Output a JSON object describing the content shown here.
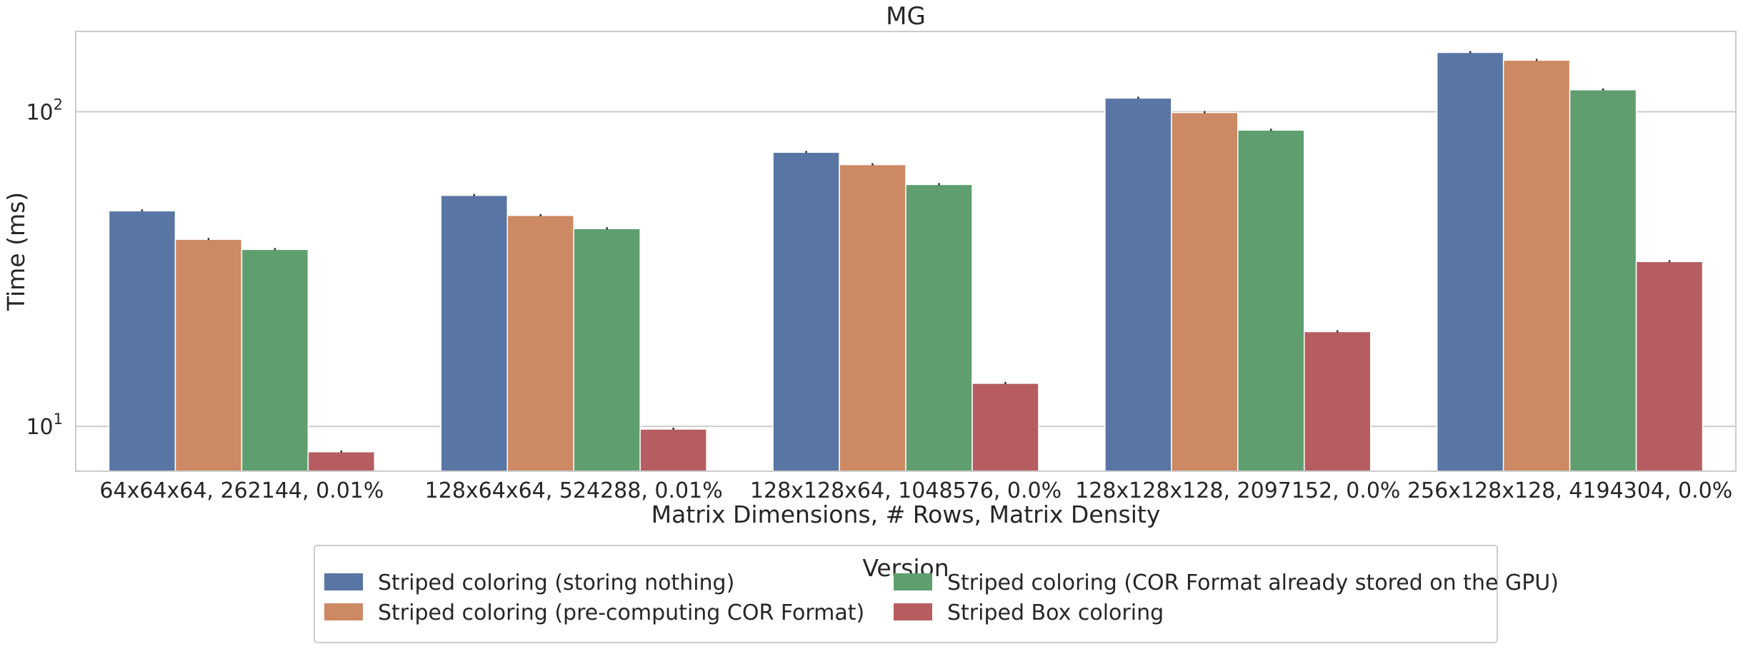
{
  "chart_data": {
    "type": "bar",
    "title": "MG",
    "xlabel": "Matrix Dimensions, # Rows, Matrix Density",
    "ylabel": "Time (ms)",
    "yscale": "log",
    "ylim": [
      7.2,
      180
    ],
    "ytick_values": [
      10,
      100
    ],
    "ytick_base": "10",
    "ytick_exponents": [
      "1",
      "2"
    ],
    "grid": "horizontal",
    "legend": {
      "title": "Version",
      "placement": "bottom-center",
      "columns": 2
    },
    "categories": [
      "64x64x64, 262144, 0.01%",
      "128x64x64, 524288, 0.01%",
      "128x128x64, 1048576, 0.0%",
      "128x128x128, 2097152, 0.0%",
      "256x128x128, 4194304, 0.0%"
    ],
    "series": [
      {
        "name": "Striped coloring (storing nothing)",
        "color": "#5875a4",
        "values": [
          48.4,
          54.2,
          74.3,
          110.5,
          154.3
        ]
      },
      {
        "name": "Striped coloring (pre-computing COR Format)",
        "color": "#cc8963",
        "values": [
          39.3,
          46.8,
          67.9,
          99.4,
          145.8
        ]
      },
      {
        "name": "Striped coloring (COR Format already stored on the GPU)",
        "color": "#5f9e6e",
        "values": [
          36.5,
          42.5,
          58.7,
          87.4,
          117.4
        ]
      },
      {
        "name": "Striped Box coloring",
        "color": "#b55d60",
        "values": [
          8.3,
          9.8,
          13.7,
          20.0,
          33.4
        ]
      }
    ]
  }
}
